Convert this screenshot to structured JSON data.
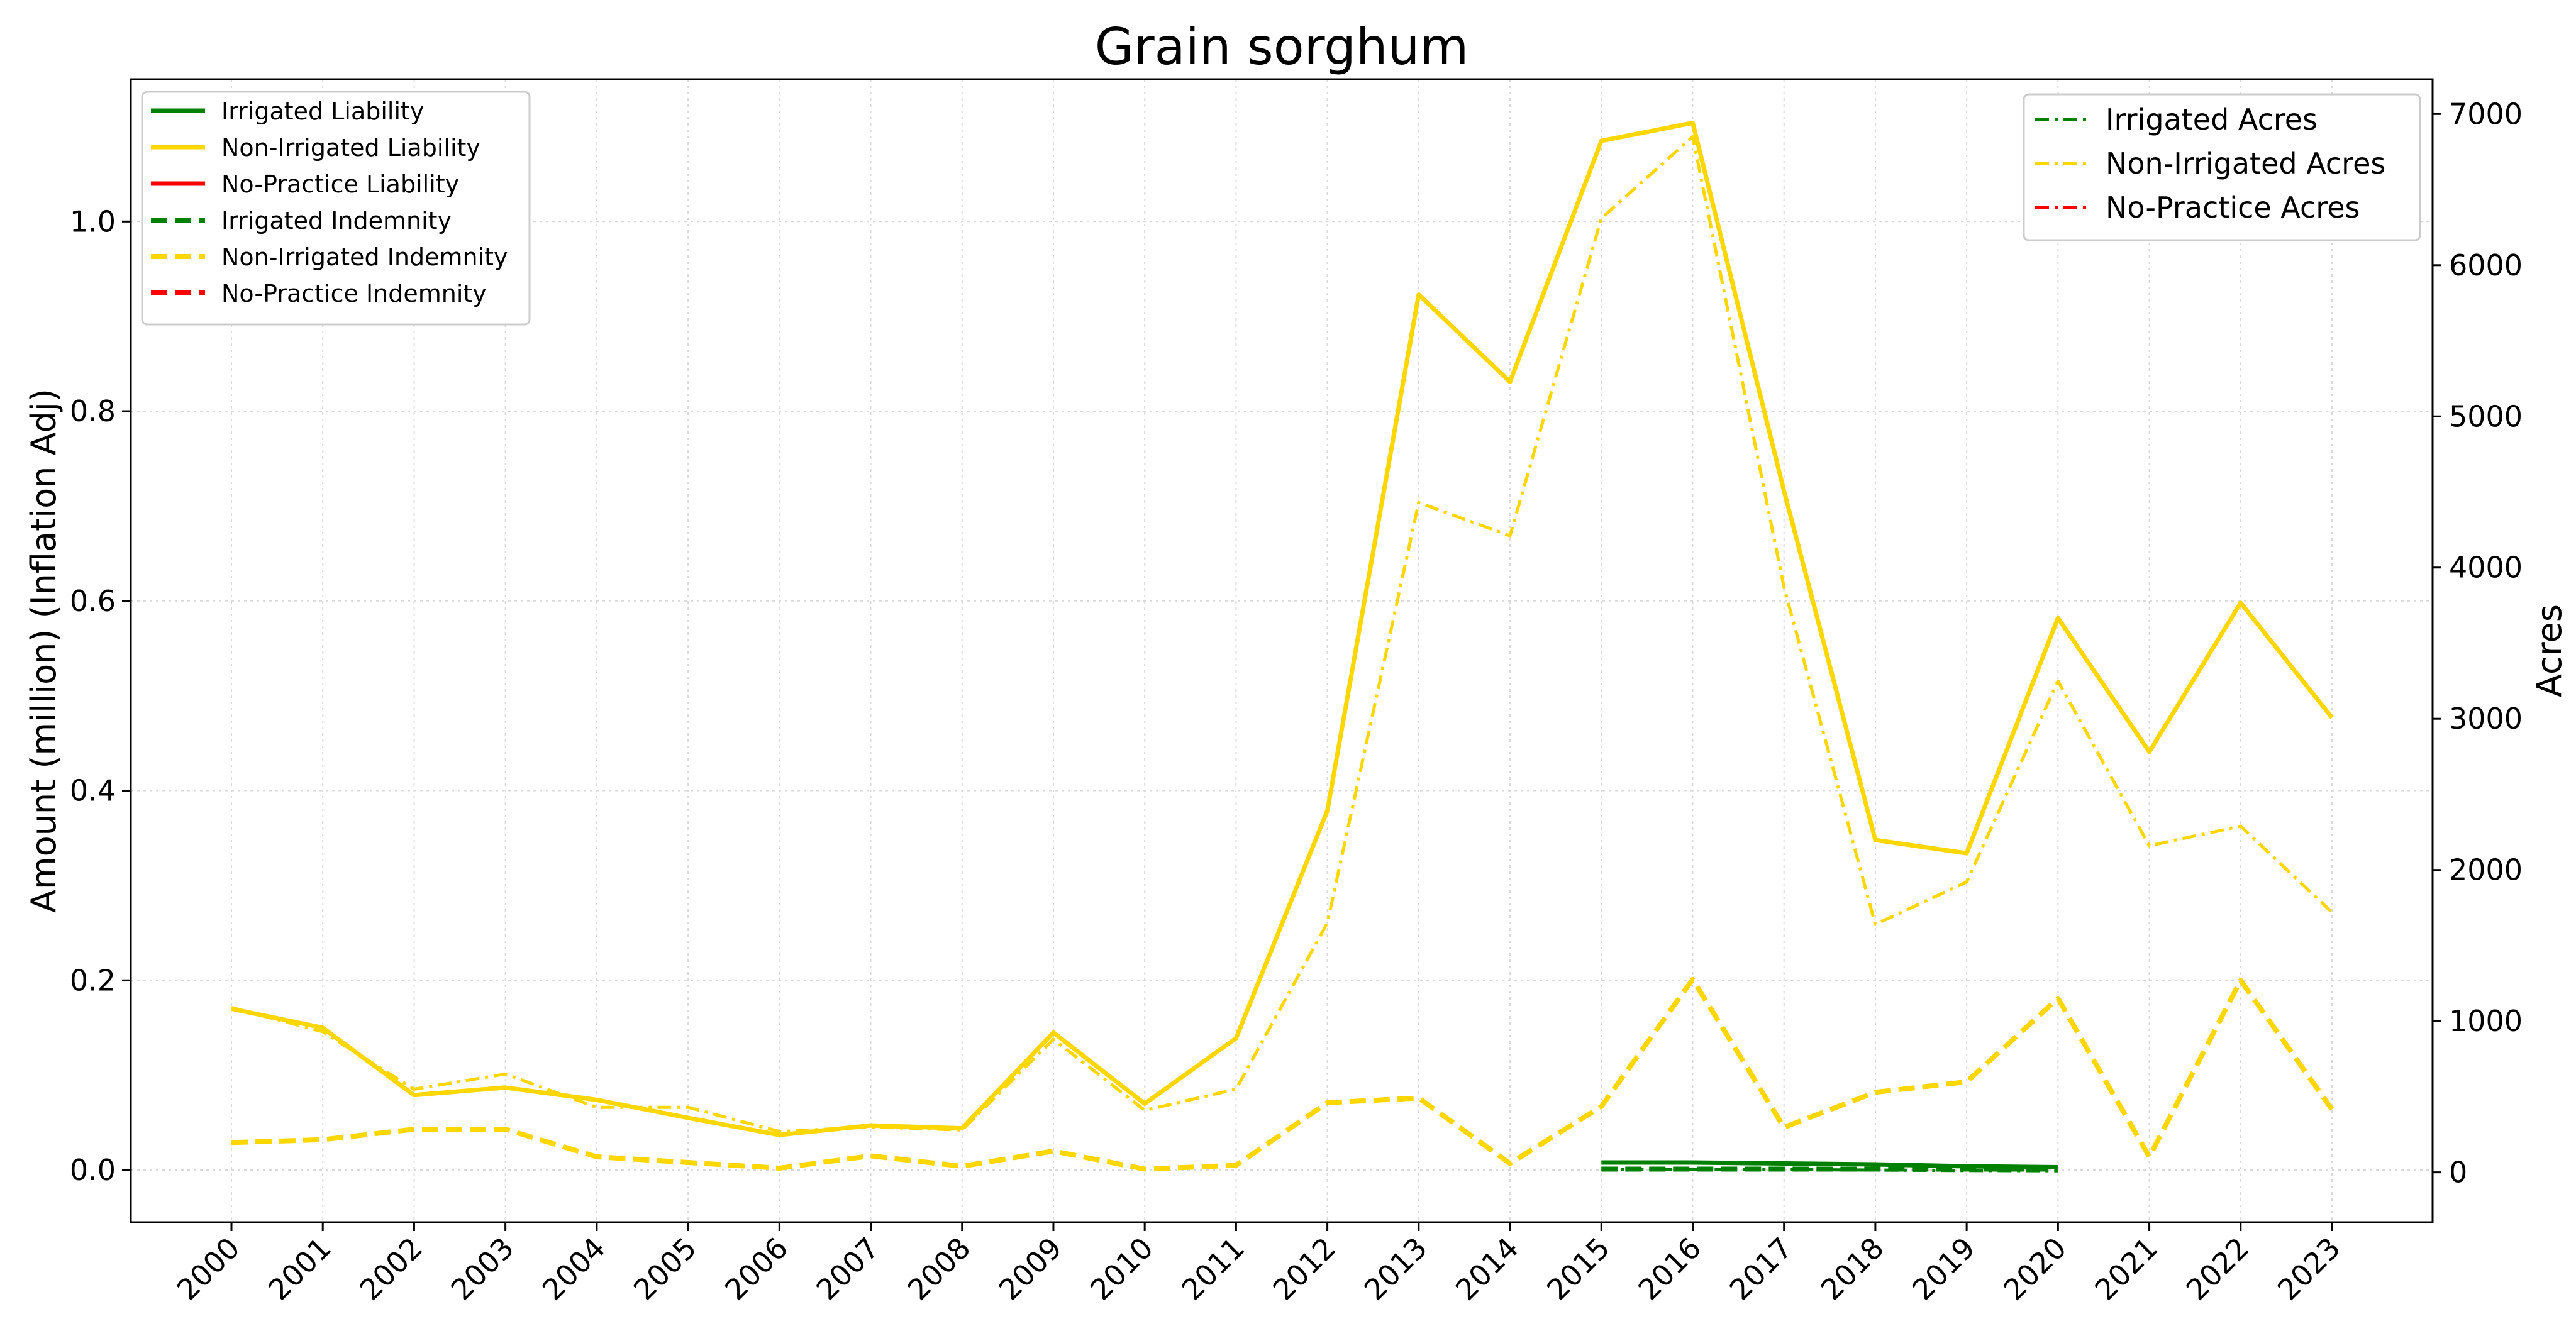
{
  "chart_data": {
    "type": "line",
    "title": "Grain sorghum",
    "ylabel_left": "Amount (million) (Inflation Adj)",
    "ylabel_right": "Acres",
    "xlabel": "",
    "years": [
      "2000",
      "2001",
      "2002",
      "2003",
      "2004",
      "2005",
      "2006",
      "2007",
      "2008",
      "2009",
      "2010",
      "2011",
      "2012",
      "2013",
      "2014",
      "2015",
      "2016",
      "2017",
      "2018",
      "2019",
      "2020",
      "2021",
      "2022",
      "2023"
    ],
    "ylim_left": [
      -0.055,
      1.15
    ],
    "ylim_right": [
      -330,
      7230
    ],
    "yticks_left": [
      "0.0",
      "0.2",
      "0.4",
      "0.6",
      "0.8",
      "1.0"
    ],
    "yticks_right": [
      "0",
      "1000",
      "2000",
      "3000",
      "4000",
      "5000",
      "6000",
      "7000"
    ],
    "grid": true,
    "legend_left_placement": "top-left",
    "legend_right_placement": "top-right",
    "colors": {
      "irrigated": "#008000",
      "non_irrigated": "#FFD700",
      "no_practice": "#FF0000"
    },
    "series": [
      {
        "name": "Irrigated Liability",
        "axis": "left",
        "style": "solid",
        "color": "#008000",
        "values": [
          null,
          null,
          null,
          null,
          null,
          null,
          null,
          null,
          null,
          null,
          null,
          null,
          null,
          null,
          null,
          0.008,
          0.008,
          0.007,
          0.006,
          0.004,
          0.003,
          null,
          null,
          null
        ]
      },
      {
        "name": "Non-Irrigated Liability",
        "axis": "left",
        "style": "solid",
        "color": "#FFD700",
        "values": [
          0.17,
          0.15,
          0.079,
          0.087,
          0.074,
          0.055,
          0.037,
          0.047,
          0.044,
          0.145,
          0.07,
          0.139,
          0.379,
          0.923,
          0.831,
          1.085,
          1.104,
          0.716,
          0.348,
          0.334,
          0.582,
          0.441,
          0.598,
          0.477
        ]
      },
      {
        "name": "No-Practice Liability",
        "axis": "left",
        "style": "solid",
        "color": "#FF0000",
        "values": [
          null,
          null,
          null,
          null,
          null,
          null,
          null,
          null,
          null,
          null,
          null,
          null,
          null,
          null,
          null,
          null,
          null,
          null,
          null,
          null,
          null,
          null,
          null,
          null
        ]
      },
      {
        "name": "Irrigated Indemnity",
        "axis": "left",
        "style": "dashed",
        "color": "#008000",
        "values": [
          null,
          null,
          null,
          null,
          null,
          null,
          null,
          null,
          null,
          null,
          null,
          null,
          null,
          null,
          null,
          0.001,
          0.001,
          0.001,
          0.001,
          0.001,
          0.001,
          null,
          null,
          null
        ]
      },
      {
        "name": "Non-Irrigated Indemnity",
        "axis": "left",
        "style": "dashed",
        "color": "#FFD700",
        "values": [
          0.029,
          0.032,
          0.043,
          0.043,
          0.014,
          0.008,
          0.002,
          0.015,
          0.004,
          0.02,
          0.001,
          0.005,
          0.071,
          0.076,
          0.007,
          0.067,
          0.201,
          0.045,
          0.082,
          0.093,
          0.181,
          0.014,
          0.2,
          0.064
        ]
      },
      {
        "name": "No-Practice Indemnity",
        "axis": "left",
        "style": "dashed",
        "color": "#FF0000",
        "values": [
          null,
          null,
          null,
          null,
          null,
          null,
          null,
          null,
          null,
          null,
          null,
          null,
          null,
          null,
          null,
          null,
          null,
          null,
          null,
          null,
          null,
          null,
          null,
          null
        ]
      },
      {
        "name": "Irrigated Acres",
        "axis": "right",
        "style": "dashdot",
        "color": "#008000",
        "values": [
          null,
          null,
          null,
          null,
          null,
          null,
          null,
          null,
          null,
          null,
          null,
          null,
          null,
          null,
          null,
          20,
          20,
          18,
          15,
          12,
          10,
          null,
          null,
          null
        ]
      },
      {
        "name": "Non-Irrigated Acres",
        "axis": "right",
        "style": "dashdot",
        "color": "#FFD700",
        "values": [
          1090,
          930,
          550,
          650,
          430,
          430,
          270,
          300,
          280,
          880,
          410,
          550,
          1650,
          4430,
          4210,
          6310,
          6850,
          3870,
          1640,
          1920,
          3250,
          2160,
          2290,
          1720
        ]
      },
      {
        "name": "No-Practice Acres",
        "axis": "right",
        "style": "dashdot",
        "color": "#FF0000",
        "values": [
          null,
          null,
          null,
          null,
          null,
          null,
          null,
          null,
          null,
          null,
          null,
          null,
          null,
          null,
          null,
          null,
          null,
          null,
          null,
          null,
          null,
          null,
          null,
          null
        ]
      }
    ]
  }
}
